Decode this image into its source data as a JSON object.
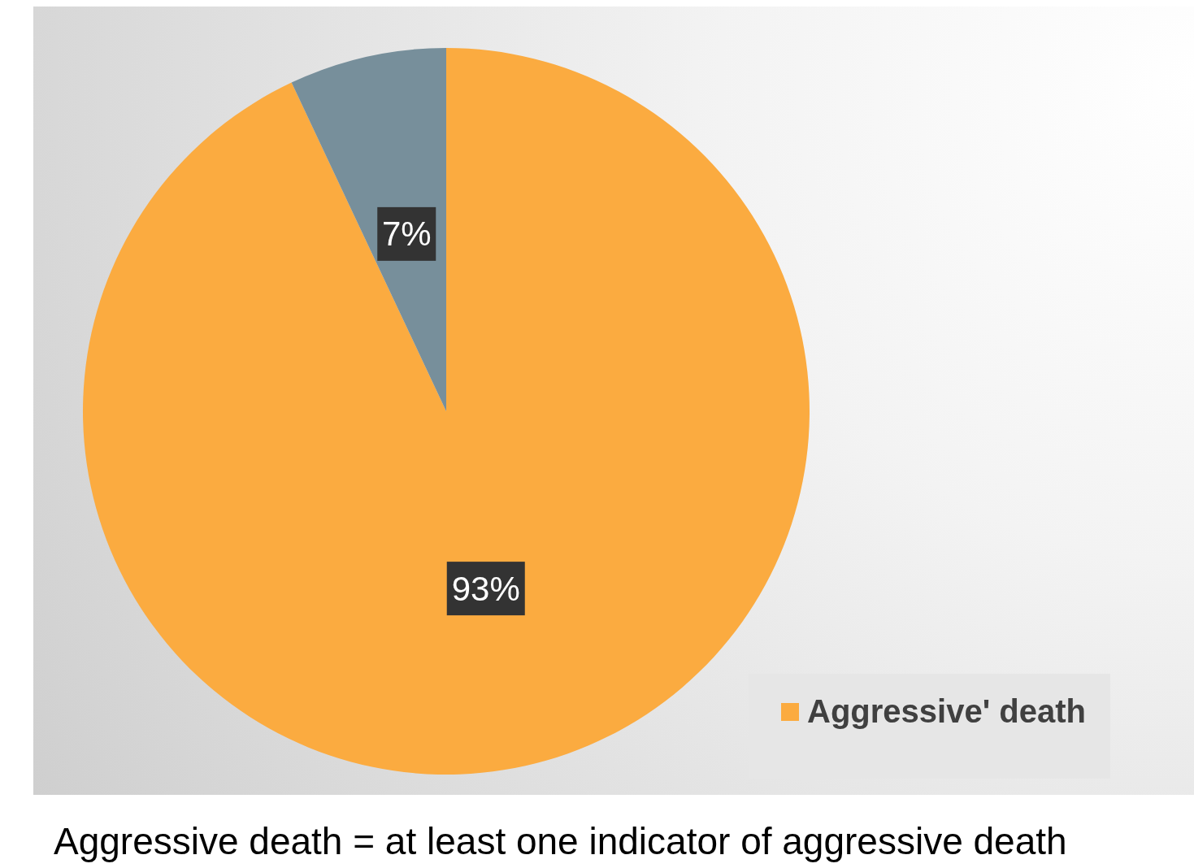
{
  "chart_data": {
    "type": "pie",
    "categories": [
      "Aggressive' death",
      null
    ],
    "values": [
      93,
      7
    ],
    "colors": [
      "#fbab40",
      "#778f9b"
    ],
    "value_labels": [
      "93%",
      "7%"
    ],
    "legend": "bottom right",
    "annotations": [
      "Aggressive death = at least one indicator of aggressive death"
    ]
  }
}
